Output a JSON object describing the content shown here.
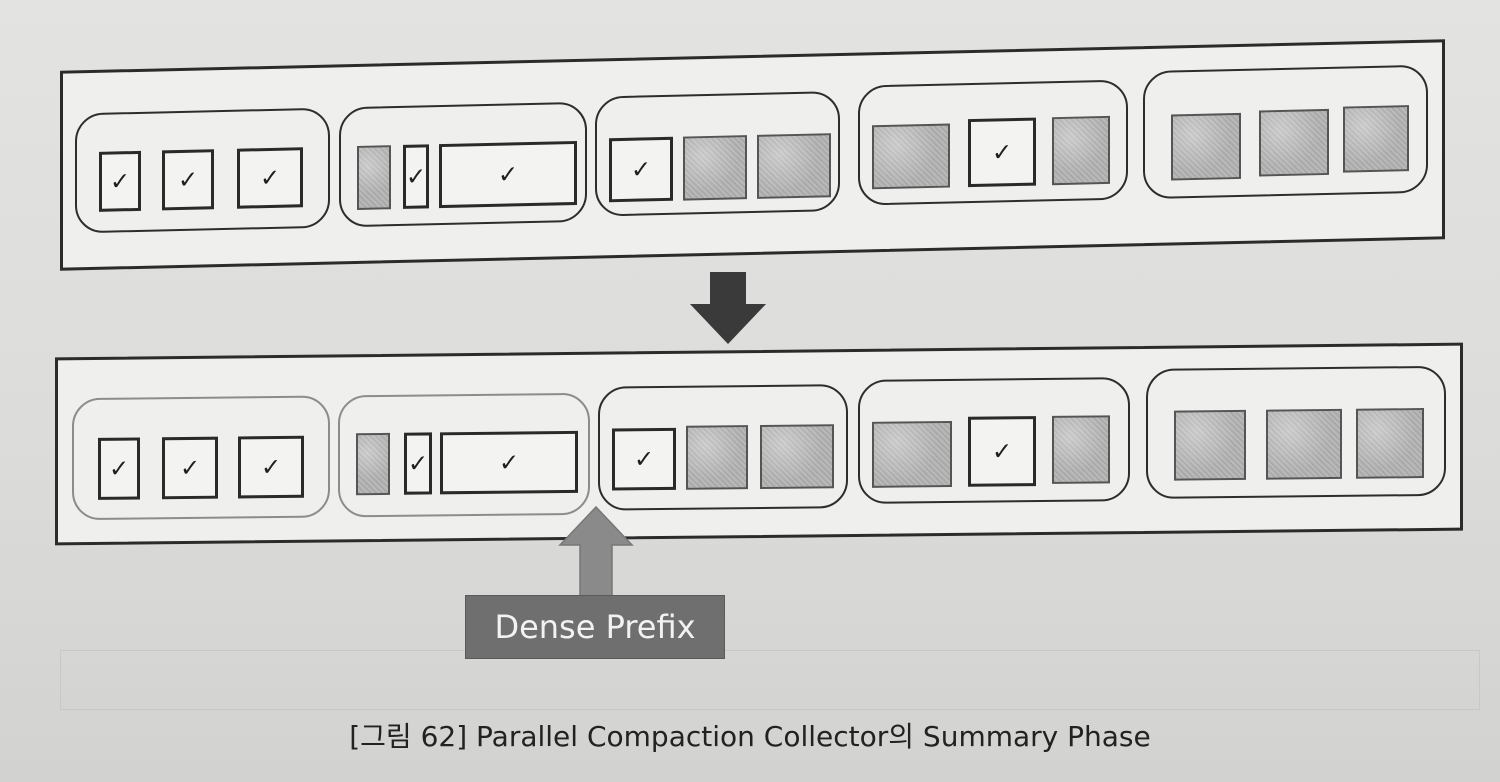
{
  "label": "Dense Prefix",
  "caption": "[그림 62] Parallel Compaction Collector의 Summary Phase",
  "check_glyph": "✓",
  "colors": {
    "line": "#2b2b2b",
    "dead_fill": "#b0b0b0",
    "faded": "#8c8c8c",
    "label_bg": "#6f6f6f"
  }
}
